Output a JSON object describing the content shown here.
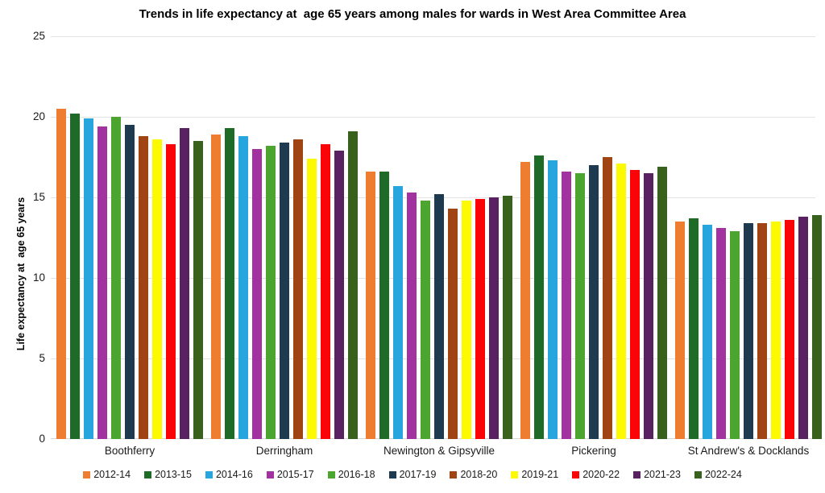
{
  "chart_data": {
    "type": "bar",
    "title": "Trends in life expectancy at  age 65 years among males for wards in West Area Committee Area",
    "ylabel": "Life expectancy at  age 65 years",
    "xlabel": "",
    "ylim": [
      0,
      25
    ],
    "yticks": [
      0,
      5,
      10,
      15,
      20,
      25
    ],
    "grid": true,
    "legend_position": "bottom",
    "categories": [
      "Boothferry",
      "Derringham",
      "Newington & Gipsyville",
      "Pickering",
      "St Andrew's & Docklands"
    ],
    "series": [
      {
        "name": "2012-14",
        "color": "#ED7D31",
        "values": [
          20.5,
          18.9,
          16.6,
          17.2,
          13.5
        ]
      },
      {
        "name": "2013-15",
        "color": "#1E6B27",
        "values": [
          20.2,
          19.3,
          16.6,
          17.6,
          13.7
        ]
      },
      {
        "name": "2014-16",
        "color": "#27A5DF",
        "values": [
          19.9,
          18.8,
          15.7,
          17.3,
          13.3
        ]
      },
      {
        "name": "2015-17",
        "color": "#A232A0",
        "values": [
          19.4,
          18.0,
          15.3,
          16.6,
          13.1
        ]
      },
      {
        "name": "2016-18",
        "color": "#4CA52F",
        "values": [
          20.0,
          18.2,
          14.8,
          16.5,
          12.9
        ]
      },
      {
        "name": "2017-19",
        "color": "#1E3A51",
        "values": [
          19.5,
          18.4,
          15.2,
          17.0,
          13.4
        ]
      },
      {
        "name": "2018-20",
        "color": "#A04413",
        "values": [
          18.8,
          18.6,
          14.3,
          17.5,
          13.4
        ]
      },
      {
        "name": "2019-21",
        "color": "#FDF900",
        "values": [
          18.6,
          17.4,
          14.8,
          17.1,
          13.5
        ]
      },
      {
        "name": "2020-22",
        "color": "#FB0407",
        "values": [
          18.3,
          18.3,
          14.9,
          16.7,
          13.6
        ]
      },
      {
        "name": "2021-23",
        "color": "#5A2162",
        "values": [
          19.3,
          17.9,
          15.0,
          16.5,
          13.8
        ]
      },
      {
        "name": "2022-24",
        "color": "#38611E",
        "values": [
          18.5,
          19.1,
          15.1,
          16.9,
          13.9
        ]
      }
    ]
  },
  "colors": {
    "background": "#FFFFFF",
    "gridline": "#E2E2E2",
    "baseline": "#D6D6D6",
    "text": "#000000"
  }
}
